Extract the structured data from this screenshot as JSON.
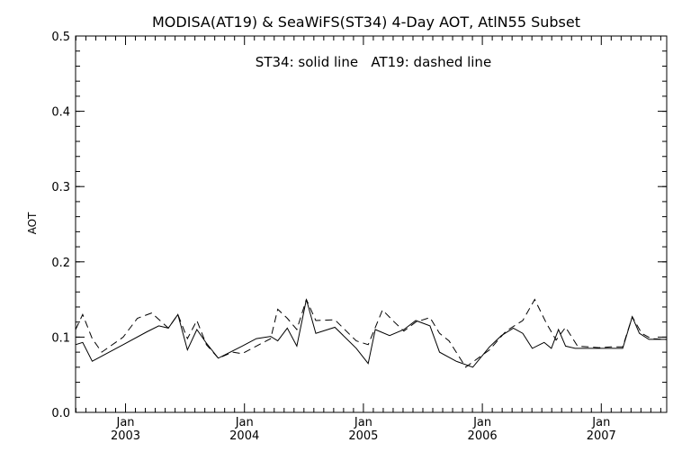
{
  "chart_data": {
    "type": "line",
    "title": "MODISA(AT19) & SeaWiFS(ST34) 4-Day AOT, AtlN55 Subset",
    "annotation": "ST34: solid line   AT19: dashed line",
    "xlabel": "",
    "ylabel": "AOT",
    "ylim": [
      0.0,
      0.5
    ],
    "yticks": [
      "0.0",
      "0.1",
      "0.2",
      "0.3",
      "0.4",
      "0.5"
    ],
    "xlim": [
      2002.58,
      2007.55
    ],
    "xticks": [
      {
        "month": "Jan",
        "year": "2003",
        "x": 2003.0
      },
      {
        "month": "Jan",
        "year": "2004",
        "x": 2004.0
      },
      {
        "month": "Jan",
        "year": "2005",
        "x": 2005.0
      },
      {
        "month": "Jan",
        "year": "2006",
        "x": 2006.0
      },
      {
        "month": "Jan",
        "year": "2007",
        "x": 2007.0
      }
    ],
    "grid": false,
    "series": [
      {
        "name": "ST34",
        "style": "solid",
        "x": [
          2002.58,
          2002.64,
          2002.72,
          2002.98,
          2003.18,
          2003.28,
          2003.36,
          2003.44,
          2003.52,
          2003.6,
          2003.68,
          2003.78,
          2003.98,
          2004.1,
          2004.22,
          2004.28,
          2004.36,
          2004.44,
          2004.52,
          2004.6,
          2004.76,
          2004.94,
          2005.04,
          2005.1,
          2005.22,
          2005.34,
          2005.44,
          2005.56,
          2005.64,
          2005.78,
          2005.92,
          2006.06,
          2006.16,
          2006.26,
          2006.34,
          2006.42,
          2006.52,
          2006.58,
          2006.64,
          2006.7,
          2006.78,
          2006.88,
          2006.98,
          2007.08,
          2007.18,
          2007.26,
          2007.32,
          2007.4,
          2007.46,
          2007.55
        ],
        "values": [
          0.09,
          0.093,
          0.068,
          0.09,
          0.107,
          0.115,
          0.112,
          0.13,
          0.083,
          0.11,
          0.092,
          0.072,
          0.088,
          0.098,
          0.101,
          0.095,
          0.112,
          0.088,
          0.15,
          0.105,
          0.113,
          0.085,
          0.065,
          0.11,
          0.102,
          0.11,
          0.122,
          0.115,
          0.08,
          0.068,
          0.06,
          0.087,
          0.102,
          0.112,
          0.105,
          0.085,
          0.093,
          0.085,
          0.11,
          0.088,
          0.085,
          0.085,
          0.085,
          0.085,
          0.085,
          0.127,
          0.105,
          0.097,
          0.097,
          0.097
        ]
      },
      {
        "name": "AT19",
        "style": "dashed",
        "x": [
          2002.58,
          2002.64,
          2002.72,
          2002.8,
          2002.98,
          2003.1,
          2003.22,
          2003.36,
          2003.44,
          2003.52,
          2003.6,
          2003.68,
          2003.78,
          2003.9,
          2003.98,
          2004.1,
          2004.22,
          2004.28,
          2004.36,
          2004.44,
          2004.52,
          2004.6,
          2004.76,
          2004.94,
          2005.04,
          2005.16,
          2005.26,
          2005.34,
          2005.44,
          2005.56,
          2005.64,
          2005.72,
          2005.86,
          2006.06,
          2006.2,
          2006.34,
          2006.44,
          2006.54,
          2006.62,
          2006.7,
          2006.8,
          2006.98,
          2007.08,
          2007.18,
          2007.26,
          2007.34,
          2007.42,
          2007.55
        ],
        "values": [
          0.11,
          0.13,
          0.098,
          0.08,
          0.1,
          0.125,
          0.132,
          0.112,
          0.13,
          0.098,
          0.122,
          0.09,
          0.072,
          0.08,
          0.078,
          0.088,
          0.098,
          0.137,
          0.125,
          0.11,
          0.15,
          0.122,
          0.123,
          0.095,
          0.09,
          0.136,
          0.12,
          0.108,
          0.12,
          0.126,
          0.105,
          0.095,
          0.06,
          0.083,
          0.108,
          0.122,
          0.15,
          0.118,
          0.096,
          0.113,
          0.088,
          0.086,
          0.087,
          0.087,
          0.127,
          0.105,
          0.098,
          0.097
        ]
      }
    ]
  }
}
